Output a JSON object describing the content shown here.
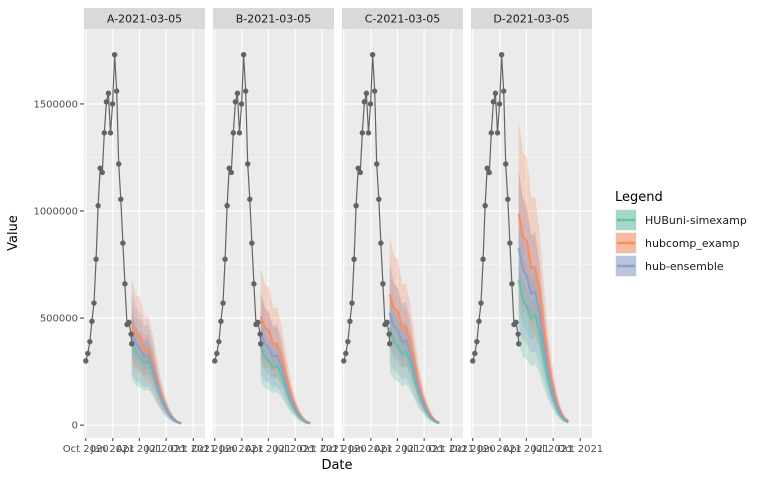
{
  "chart_data": {
    "type": "line",
    "panels": [
      {
        "label": "A-2021-03-05",
        "scale": [
          1.0,
          1.0,
          1.0
        ]
      },
      {
        "label": "B-2021-03-05",
        "scale": [
          0.93,
          1.08,
          1.0
        ]
      },
      {
        "label": "C-2021-03-05",
        "scale": [
          1.15,
          1.3,
          1.22
        ]
      },
      {
        "label": "D-2021-03-05",
        "scale": [
          1.72,
          2.1,
          1.92
        ]
      }
    ],
    "xlabel": "Date",
    "ylabel": "Value",
    "x_ticks": [
      "Oct 2020",
      "Jan 2021",
      "Apr 2021",
      "Jul 2021",
      "Oct 2021"
    ],
    "x_tick_dates": [
      "2020-10-01",
      "2021-01-01",
      "2021-04-01",
      "2021-07-01",
      "2021-10-01"
    ],
    "xlim": [
      "2020-09-25",
      "2021-11-10"
    ],
    "y_ticks": [
      0,
      500000,
      1000000,
      1500000
    ],
    "y_tick_labels": [
      "0",
      "500000",
      "1000000",
      "1500000"
    ],
    "ylim": [
      -60000,
      1850000
    ],
    "observed": {
      "color": "#636363",
      "points": [
        {
          "x": "2020-10-01",
          "y": 300000
        },
        {
          "x": "2020-10-08",
          "y": 335000
        },
        {
          "x": "2020-10-15",
          "y": 390000
        },
        {
          "x": "2020-10-22",
          "y": 485000
        },
        {
          "x": "2020-10-29",
          "y": 570000
        },
        {
          "x": "2020-11-05",
          "y": 775000
        },
        {
          "x": "2020-11-12",
          "y": 1025000
        },
        {
          "x": "2020-11-19",
          "y": 1200000
        },
        {
          "x": "2020-11-26",
          "y": 1180000
        },
        {
          "x": "2020-12-03",
          "y": 1365000
        },
        {
          "x": "2020-12-10",
          "y": 1510000
        },
        {
          "x": "2020-12-17",
          "y": 1550000
        },
        {
          "x": "2020-12-24",
          "y": 1365000
        },
        {
          "x": "2020-12-31",
          "y": 1500000
        },
        {
          "x": "2021-01-07",
          "y": 1730000
        },
        {
          "x": "2021-01-14",
          "y": 1560000
        },
        {
          "x": "2021-01-21",
          "y": 1220000
        },
        {
          "x": "2021-01-28",
          "y": 1055000
        },
        {
          "x": "2021-02-04",
          "y": 850000
        },
        {
          "x": "2021-02-11",
          "y": 660000
        },
        {
          "x": "2021-02-18",
          "y": 470000
        },
        {
          "x": "2021-02-25",
          "y": 480000
        },
        {
          "x": "2021-03-04",
          "y": 425000
        },
        {
          "x": "2021-03-06",
          "y": 380000
        }
      ]
    },
    "forecast_dates": [
      "2021-03-06",
      "2021-03-20",
      "2021-04-03",
      "2021-04-17",
      "2021-05-01",
      "2021-05-15",
      "2021-05-29",
      "2021-06-12",
      "2021-06-26",
      "2021-07-10",
      "2021-07-24",
      "2021-08-07",
      "2021-08-21"
    ],
    "series": [
      {
        "name": "HUBuni-simexamp",
        "color": "#66c2a5",
        "median": [
          395000,
          340000,
          320000,
          290000,
          300000,
          255000,
          190000,
          130000,
          85000,
          50000,
          28000,
          14000,
          8000
        ],
        "band_mult": [
          0.55,
          1.35
        ]
      },
      {
        "name": "hubcomp_examp",
        "color": "#fc8d62",
        "median": [
          470000,
          420000,
          410000,
          350000,
          350000,
          300000,
          225000,
          155000,
          100000,
          60000,
          33000,
          16000,
          9000
        ],
        "band_mult": [
          0.6,
          1.45
        ]
      },
      {
        "name": "hub-ensemble",
        "color": "#8da0cb",
        "median": [
          430000,
          380000,
          360000,
          320000,
          325000,
          275000,
          205000,
          140000,
          92000,
          55000,
          30000,
          15000,
          8500
        ],
        "band_mult": [
          0.55,
          1.45
        ]
      }
    ],
    "legend": {
      "title": "Legend",
      "position": "right"
    },
    "grid": true
  }
}
